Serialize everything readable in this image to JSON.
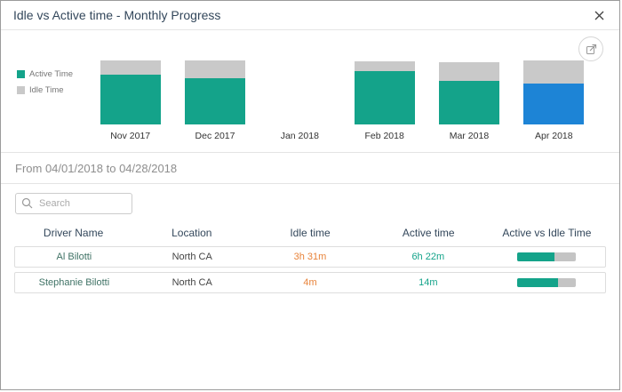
{
  "modal": {
    "title": "Idle vs Active time - Monthly Progress"
  },
  "chart_data": {
    "type": "bar",
    "stacked": true,
    "title": "",
    "categories": [
      "Nov 2017",
      "Dec 2017",
      "Jan 2018",
      "Feb 2018",
      "Mar 2018",
      "Apr 2018"
    ],
    "series": [
      {
        "name": "Active Time",
        "color": "#14a38a",
        "values": [
          56,
          52,
          0,
          60,
          49,
          46
        ]
      },
      {
        "name": "Idle Time",
        "color": "#c9c9c9",
        "values": [
          16,
          20,
          0,
          11,
          21,
          26
        ]
      }
    ],
    "units": "relative bar height (no value axis shown in UI)",
    "selected_category": "Apr 2018",
    "selected_active_color": "#1d84d6",
    "legend_position": "left"
  },
  "filter": {
    "period_text": "From 04/01/2018 to 04/28/2018"
  },
  "search": {
    "placeholder": "Search"
  },
  "table": {
    "columns": [
      "Driver Name",
      "Location",
      "Idle time",
      "Active time",
      "Active vs Idle Time"
    ],
    "rows": [
      {
        "driver_name": "Al Bilotti",
        "location": "North CA",
        "idle_time": "3h 31m",
        "active_time": "6h 22m",
        "active_pct": 64
      },
      {
        "driver_name": "Stephanie Bilotti",
        "location": "North CA",
        "idle_time": "4m",
        "active_time": "14m",
        "active_pct": 70
      }
    ],
    "colors": {
      "driver_text": "#3f7265",
      "idle_text": "#e8833a",
      "active_text": "#14a38a",
      "bar_active": "#14a38a",
      "bar_track": "#c4c4c4"
    }
  }
}
